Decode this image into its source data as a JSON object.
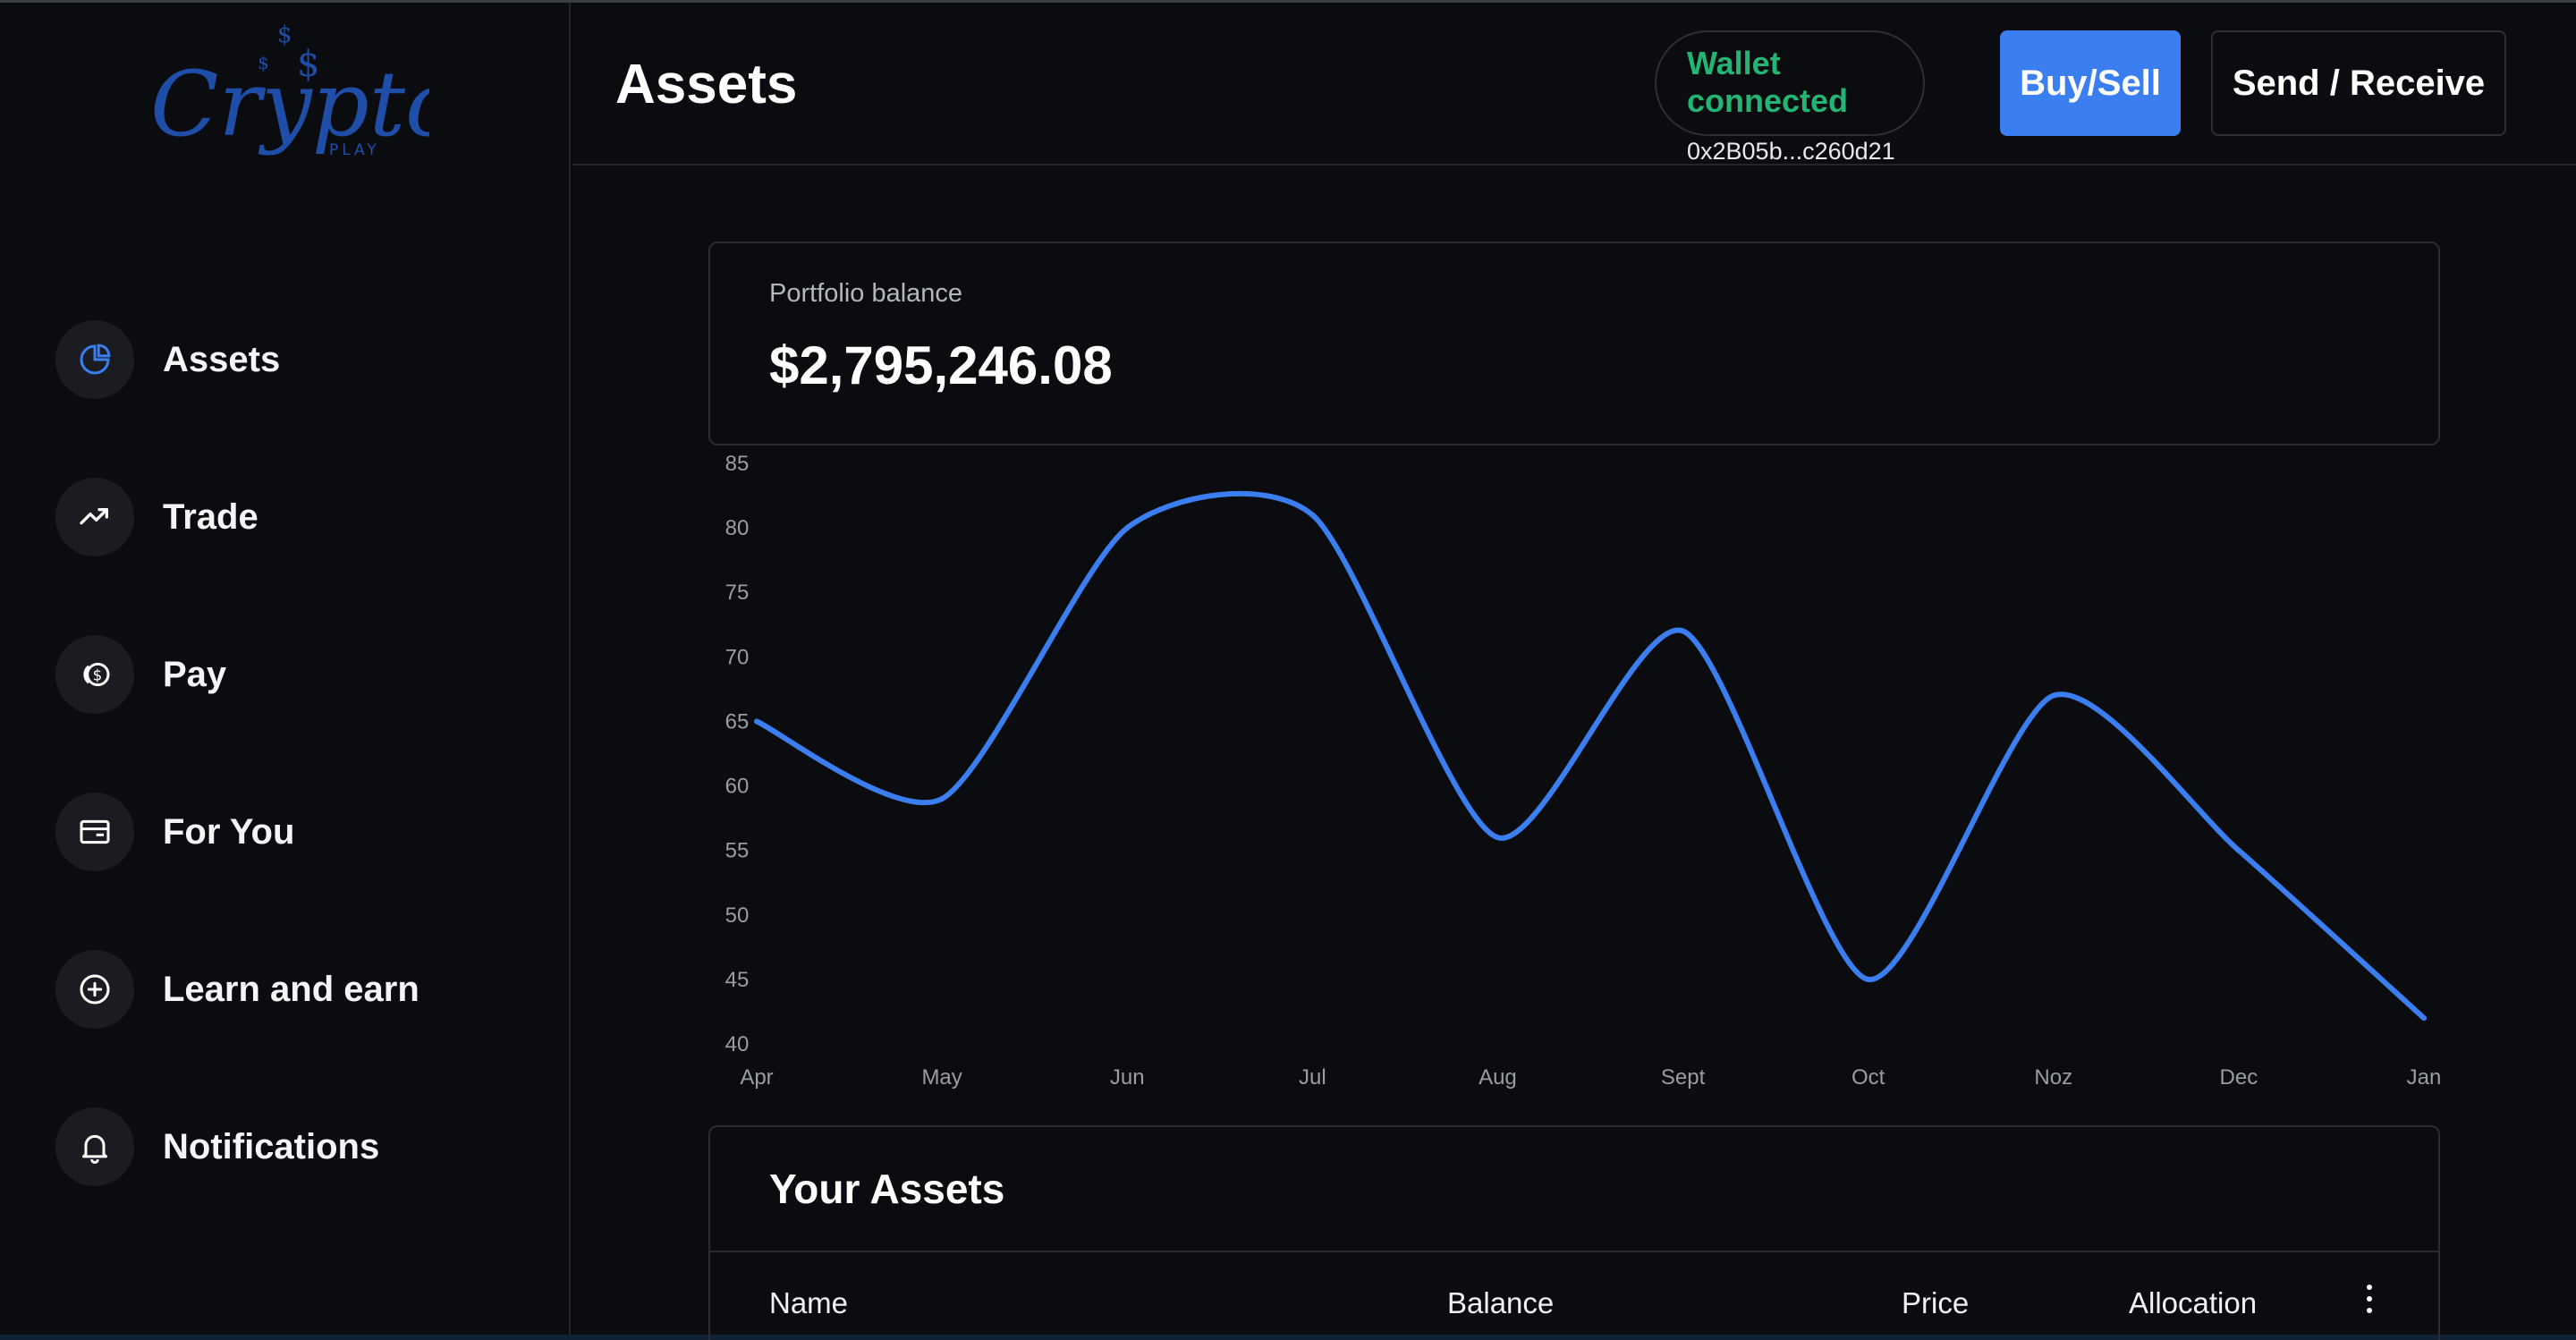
{
  "brand": {
    "name": "Crypto",
    "sub": "PLAY",
    "color": "#1f4ea8"
  },
  "sidebar": {
    "items": [
      {
        "label": "Assets",
        "icon": "pie-chart-icon",
        "active": true
      },
      {
        "label": "Trade",
        "icon": "trend-up-icon"
      },
      {
        "label": "Pay",
        "icon": "coins-icon"
      },
      {
        "label": "For You",
        "icon": "card-icon"
      },
      {
        "label": "Learn and earn",
        "icon": "plus-circle-icon"
      },
      {
        "label": "Notifications",
        "icon": "bell-icon"
      }
    ]
  },
  "header": {
    "title": "Assets",
    "wallet_status": "Wallet connected",
    "wallet_address": "0x2B05b...c260d21",
    "buy_sell_label": "Buy/Sell",
    "send_receive_label": "Send / Receive"
  },
  "balance": {
    "label": "Portfolio balance",
    "value": "$2,795,246.08"
  },
  "chart_data": {
    "type": "line",
    "categories": [
      "Apr",
      "May",
      "Jun",
      "Jul",
      "Aug",
      "Sept",
      "Oct",
      "Noz",
      "Dec",
      "Jan"
    ],
    "series": [
      {
        "values": [
          65,
          59,
          80,
          81,
          56,
          72,
          45,
          67,
          55,
          42
        ]
      }
    ],
    "ylim": [
      40,
      85
    ],
    "yticks": [
      85,
      80,
      75,
      70,
      65,
      60,
      55,
      50,
      45,
      40
    ],
    "grid": false,
    "line_color": "#3b7ef0"
  },
  "assets": {
    "title": "Your Assets",
    "columns": [
      "Name",
      "Balance",
      "Price",
      "Allocation"
    ]
  },
  "colors": {
    "accent": "#3b7ef0",
    "success": "#22b573",
    "background": "#0b0c0f"
  }
}
